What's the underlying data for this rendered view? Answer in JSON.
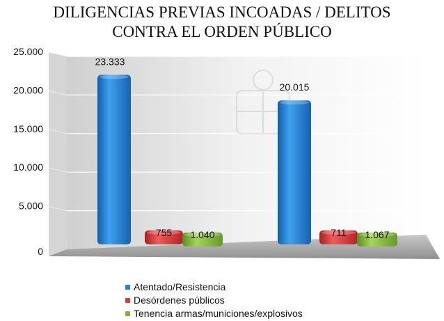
{
  "chart_data": {
    "type": "bar",
    "title": [
      "DILIGENCIAS PREVIAS INCOADAS / DELITOS",
      "CONTRA EL ORDEN PÚBLICO"
    ],
    "categories": [
      "",
      ""
    ],
    "ylim": [
      0,
      25000
    ],
    "yticks": [
      0,
      5000,
      10000,
      15000,
      20000,
      25000
    ],
    "ytick_labels": [
      "0",
      "5.000",
      "10.000",
      "15.000",
      "20.000",
      "25.000"
    ],
    "grid": true,
    "legend_position": "bottom",
    "series": [
      {
        "name": "Atentado/Resistencia",
        "color": "#1f7fd0",
        "values": [
          23333,
          20015
        ],
        "labels": [
          "23.333",
          "20.015"
        ]
      },
      {
        "name": "Desórdenes públicos",
        "color": "#d93a3a",
        "values": [
          755,
          711
        ],
        "labels": [
          "755",
          "711"
        ]
      },
      {
        "name": "Tenencia armas/municiones/explosivos",
        "color": "#7fb53a",
        "values": [
          1040,
          1067
        ],
        "labels": [
          "1.040",
          "1.067"
        ]
      }
    ]
  }
}
